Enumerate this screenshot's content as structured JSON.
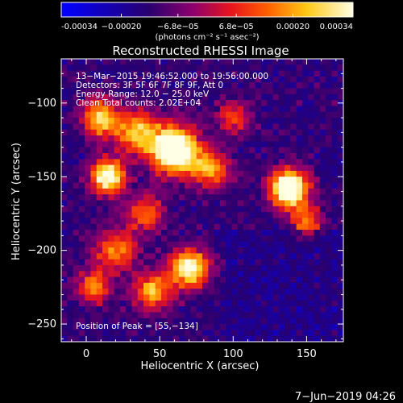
{
  "chart_data": {
    "type": "heatmap",
    "title": "Reconstructed RHESSI Image",
    "xlabel": "Heliocentric X (arcsec)",
    "ylabel": "Heliocentric Y (arcsec)",
    "xlim": [
      -17,
      175
    ],
    "ylim": [
      -262,
      -70
    ],
    "x_ticks": [
      0,
      50,
      100,
      150
    ],
    "y_ticks": [
      -100,
      -150,
      -200,
      -250
    ],
    "colorbar": {
      "range": [
        -0.00034,
        0.00034
      ],
      "tick_values": [
        -0.00034,
        -0.0002,
        -6.8e-05,
        6.8e-05,
        0.0002,
        0.00034
      ],
      "tick_labels": [
        "-0.00034",
        "−0.00020",
        "−6.8e−05",
        "6.8e−05",
        "0.00020",
        "0.00034"
      ],
      "unit_label": "(photons cm⁻² s⁻¹ asec⁻²)"
    },
    "annotations": [
      "13−Mar−2015 19:46:52.000 to 19:56:00.000",
      "Detectors: 3F 5F 6F 7F 8F 9F, Att 0",
      "Energy Range: 12.0 − 25.0 keV",
      "Clean    Total counts: 2.02E+04"
    ],
    "peak_text": "Position of Peak = [55,−134]",
    "peak": [
      55,
      -134
    ],
    "sources": [
      {
        "x": 60,
        "y": -132,
        "amp": 1.0,
        "sigma": 11
      },
      {
        "x": 15,
        "y": -150,
        "amp": 0.8,
        "sigma": 8
      },
      {
        "x": 138,
        "y": -158,
        "amp": 0.95,
        "sigma": 9
      },
      {
        "x": 10,
        "y": -110,
        "amp": 0.6,
        "sigma": 9
      },
      {
        "x": 35,
        "y": -120,
        "amp": 0.55,
        "sigma": 10
      },
      {
        "x": 70,
        "y": -212,
        "amp": 0.75,
        "sigma": 9
      },
      {
        "x": 45,
        "y": -228,
        "amp": 0.55,
        "sigma": 9
      },
      {
        "x": 5,
        "y": -225,
        "amp": 0.45,
        "sigma": 8
      },
      {
        "x": 85,
        "y": -145,
        "amp": 0.5,
        "sigma": 9
      },
      {
        "x": 20,
        "y": -200,
        "amp": 0.45,
        "sigma": 10
      },
      {
        "x": 100,
        "y": -110,
        "amp": 0.35,
        "sigma": 8
      },
      {
        "x": 150,
        "y": -180,
        "amp": 0.45,
        "sigma": 7
      },
      {
        "x": 40,
        "y": -175,
        "amp": 0.4,
        "sigma": 9
      }
    ],
    "grid": false
  },
  "footer": {
    "date": "7−Jun−2019 04:26"
  }
}
